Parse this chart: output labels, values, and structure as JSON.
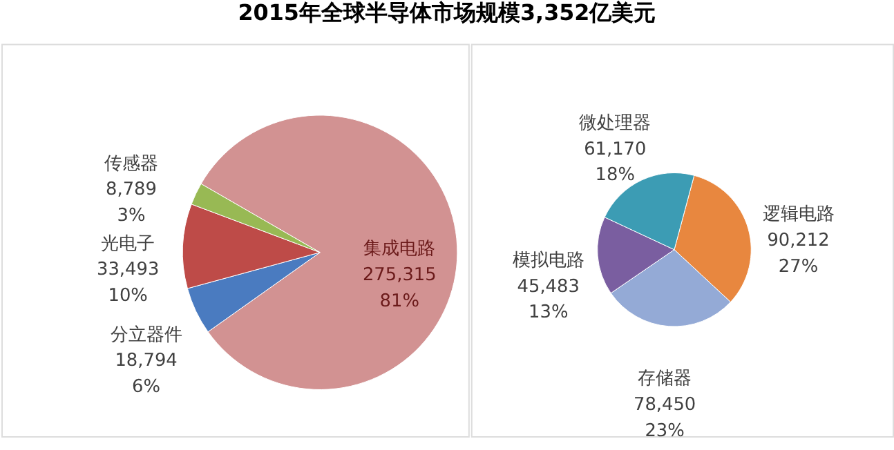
{
  "chart_data": [
    {
      "type": "pie",
      "title": "2015年全球半导体市场规模3,352亿美元",
      "categories": [
        "集成电路",
        "分立器件",
        "光电子",
        "传感器"
      ],
      "values": [
        275315,
        18794,
        33493,
        8789
      ],
      "colors": [
        "#d29292",
        "#4a7bc0",
        "#be4b48",
        "#98b954"
      ],
      "value_labels": [
        "275,315\n81%",
        "18,794\n6%",
        "33,493\n10%",
        "8,789\n3%"
      ]
    },
    {
      "type": "pie",
      "categories": [
        "逻辑电路",
        "存储器",
        "模拟电路",
        "微处理器"
      ],
      "values": [
        90212,
        78450,
        45483,
        61170
      ],
      "colors": [
        "#e8873f",
        "#94aad6",
        "#7a5ea0",
        "#3c9cb4"
      ],
      "value_labels": [
        "90,212\n27%",
        "78,450\n23%",
        "45,483\n13%",
        "61,170\n18%"
      ]
    }
  ]
}
